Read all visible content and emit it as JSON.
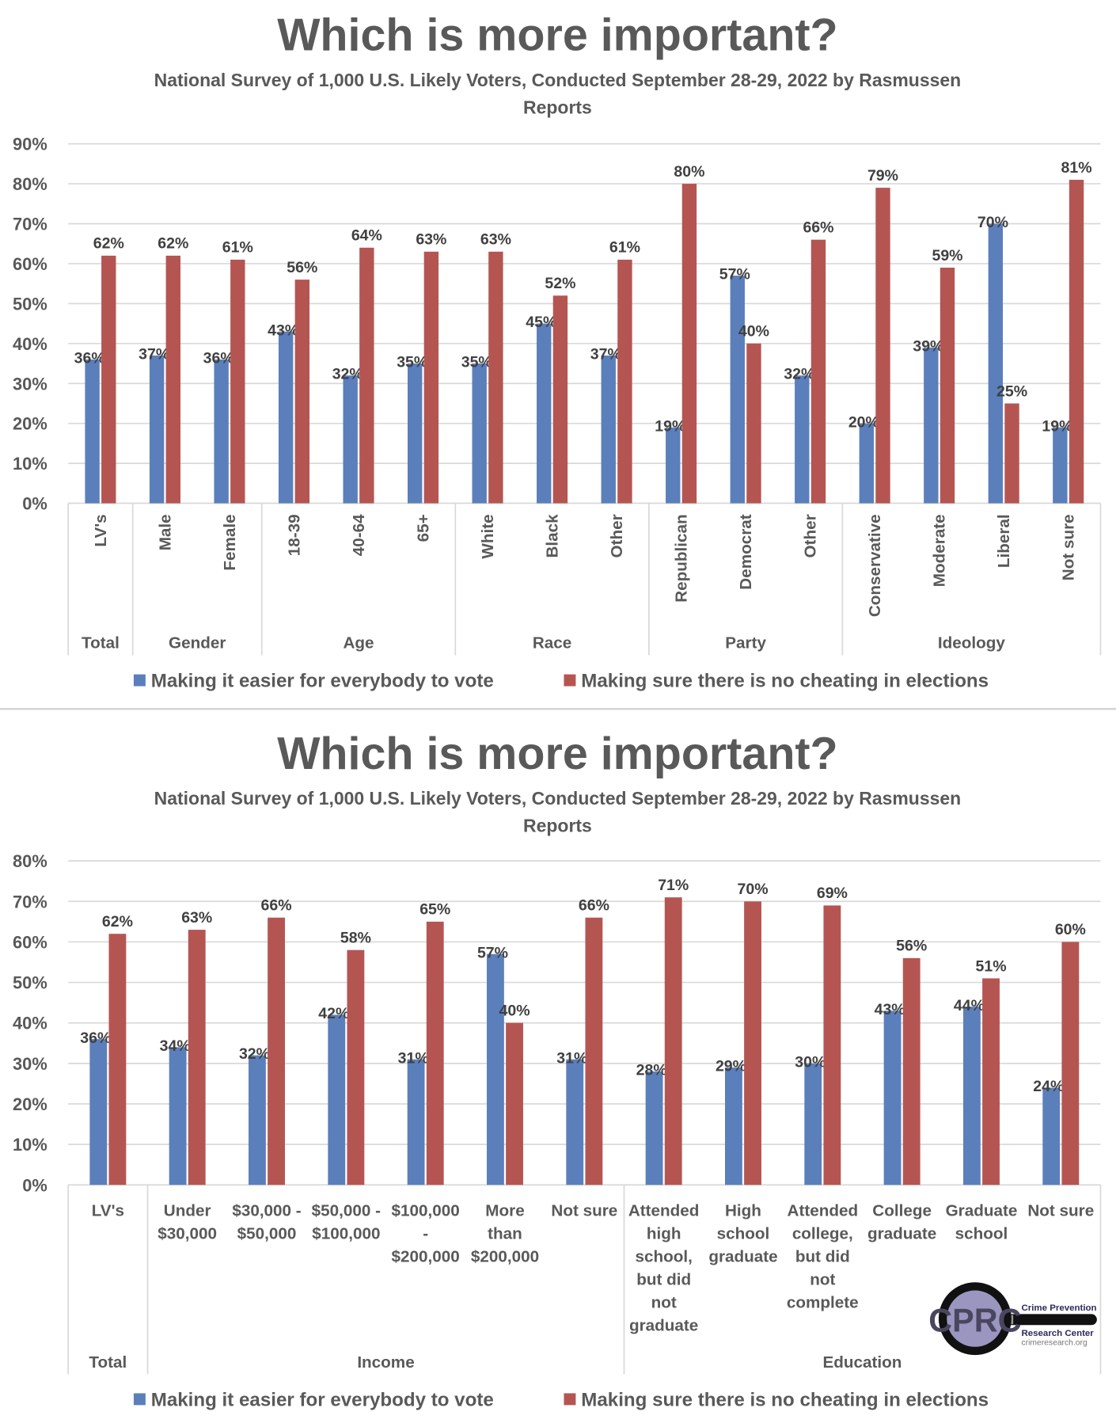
{
  "colors": {
    "series1": "#5b7fbb",
    "series2": "#b55552",
    "grid": "#d9d9d9",
    "text": "#595959"
  },
  "logo": {
    "text": "CPRC",
    "line1": "Crime Prevention",
    "line2": "Research Center",
    "url": "crimeresearch.org"
  },
  "chart_data": [
    {
      "type": "bar",
      "title": "Which is more important?",
      "subtitle": [
        "National Survey of 1,000 U.S. Likely Voters, Conducted September 28-29, 2022 by Rasmussen",
        "Reports"
      ],
      "ylim": [
        0,
        90
      ],
      "yticks": [
        "0%",
        "10%",
        "20%",
        "30%",
        "40%",
        "50%",
        "60%",
        "70%",
        "80%",
        "90%"
      ],
      "grid": true,
      "legend_placement": "bottom",
      "categories": [
        "LV's",
        "Male",
        "Female",
        "18-39",
        "40-64",
        "65+",
        "White",
        "Black",
        "Other",
        "Republican",
        "Democrat",
        "Other",
        "Conservative",
        "Moderate",
        "Liberal",
        "Not sure"
      ],
      "groups": [
        {
          "label": "Total",
          "count": 1
        },
        {
          "label": "Gender",
          "count": 2
        },
        {
          "label": "Age",
          "count": 3
        },
        {
          "label": "Race",
          "count": 3
        },
        {
          "label": "Party",
          "count": 3
        },
        {
          "label": "Ideology",
          "count": 4
        }
      ],
      "series": [
        {
          "name": "Making it easier for everybody to vote",
          "values": [
            36,
            37,
            36,
            43,
            32,
            35,
            35,
            45,
            37,
            19,
            57,
            32,
            20,
            39,
            70,
            19
          ]
        },
        {
          "name": "Making sure there is no cheating in elections",
          "values": [
            62,
            62,
            61,
            56,
            64,
            63,
            63,
            52,
            61,
            80,
            40,
            66,
            79,
            59,
            25,
            81
          ]
        }
      ]
    },
    {
      "type": "bar",
      "title": "Which is more important?",
      "subtitle": [
        "National Survey of 1,000 U.S. Likely Voters, Conducted September 28-29, 2022 by Rasmussen",
        "Reports"
      ],
      "ylim": [
        0,
        80
      ],
      "yticks": [
        "0%",
        "10%",
        "20%",
        "30%",
        "40%",
        "50%",
        "60%",
        "70%",
        "80%"
      ],
      "grid": true,
      "legend_placement": "bottom",
      "categories": [
        [
          "LV's"
        ],
        [
          "Under",
          "$30,000"
        ],
        [
          "$30,000 -",
          "$50,000"
        ],
        [
          "$50,000 -",
          "$100,000"
        ],
        [
          "$100,000",
          "-",
          "$200,000"
        ],
        [
          "More",
          "than",
          "$200,000"
        ],
        [
          "Not sure"
        ],
        [
          "Attended",
          "high",
          "school,",
          "but did",
          "not",
          "graduate"
        ],
        [
          "High",
          "school",
          "graduate"
        ],
        [
          "Attended",
          "college,",
          "but did",
          "not",
          "complete"
        ],
        [
          "College",
          "graduate"
        ],
        [
          "Graduate",
          "school"
        ],
        [
          "Not sure"
        ]
      ],
      "groups": [
        {
          "label": "Total",
          "count": 1
        },
        {
          "label": "Income",
          "count": 6
        },
        {
          "label": "Education",
          "count": 6
        }
      ],
      "series": [
        {
          "name": "Making it easier for everybody to vote",
          "values": [
            36,
            34,
            32,
            42,
            31,
            57,
            31,
            28,
            29,
            30,
            43,
            44,
            24
          ]
        },
        {
          "name": "Making sure there is no cheating in elections",
          "values": [
            62,
            63,
            66,
            58,
            65,
            40,
            66,
            71,
            70,
            69,
            56,
            51,
            60
          ]
        }
      ]
    }
  ]
}
